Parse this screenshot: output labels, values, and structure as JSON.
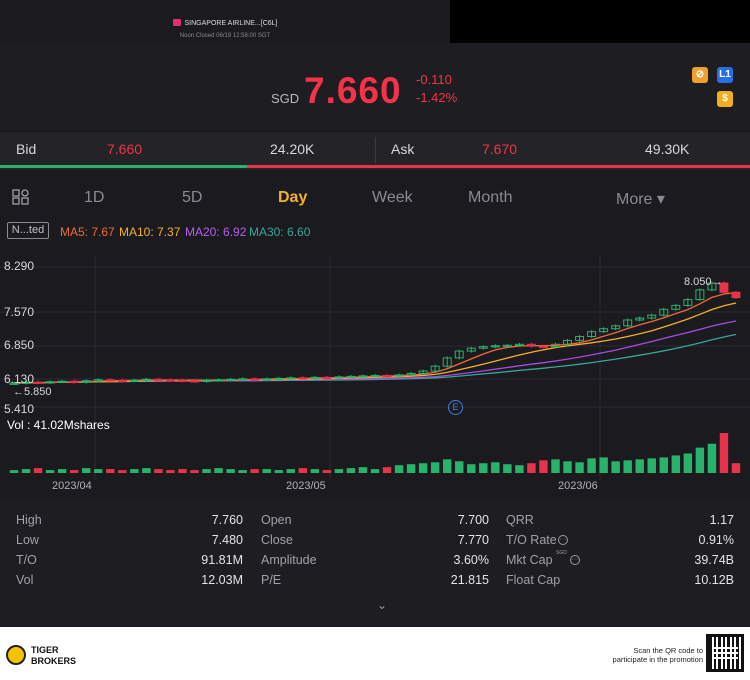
{
  "header": {
    "title": "SINGAPORE AIRLINE...[C6L]",
    "status": "Noon Closed 06/19 12:58:00 SGT"
  },
  "quote": {
    "currency": "SGD",
    "price": "7.660",
    "change": "-0.110",
    "change_pct": "-1.42%",
    "price_color": "#f2334a"
  },
  "badges": {
    "b1": "⊘",
    "b2": "L1",
    "b3": "$"
  },
  "bidask": {
    "bid_label": "Bid",
    "bid_price": "7.660",
    "bid_size": "24.20K",
    "ask_label": "Ask",
    "ask_price": "7.670",
    "ask_size": "49.30K"
  },
  "tabs": [
    "1D",
    "5D",
    "Day",
    "Week",
    "Month",
    "More ▾"
  ],
  "active_tab": "Day",
  "ma_legend": {
    "mode": "N...ted",
    "ma5": "MA5: 7.67",
    "ma10": "MA10: 7.37",
    "ma20": "MA20: 6.92",
    "ma30": "MA30: 6.60",
    "colors": {
      "ma5": "#f06a3a",
      "ma10": "#f3b12c",
      "ma20": "#a64ce0",
      "ma30": "#3aa59a"
    }
  },
  "chart_data": {
    "type": "candlestick",
    "y_ticks": [
      "8.290",
      "7.570",
      "6.850",
      "6.130",
      "5.410"
    ],
    "high_label": "8.050",
    "low_label": "5.850",
    "event_marker": "E",
    "x_ticks": [
      "2023/04",
      "2023/05",
      "2023/06"
    ],
    "volume_label": "Vol : 41.02Mshares",
    "closes": [
      5.9,
      5.92,
      5.91,
      5.93,
      5.94,
      5.92,
      5.95,
      5.97,
      5.96,
      5.95,
      5.96,
      5.98,
      5.97,
      5.96,
      5.95,
      5.94,
      5.96,
      5.97,
      5.98,
      5.99,
      5.98,
      5.99,
      6.0,
      6.01,
      6.0,
      6.02,
      6.01,
      6.03,
      6.04,
      6.05,
      6.06,
      6.05,
      6.07,
      6.1,
      6.15,
      6.25,
      6.42,
      6.56,
      6.62,
      6.65,
      6.67,
      6.68,
      6.7,
      6.66,
      6.65,
      6.7,
      6.78,
      6.86,
      6.96,
      7.02,
      7.08,
      7.2,
      7.24,
      7.3,
      7.42,
      7.5,
      7.62,
      7.82,
      7.96,
      7.77,
      7.66
    ],
    "volumes": [
      3,
      4,
      5,
      3,
      4,
      3,
      5,
      4,
      4,
      3,
      4,
      5,
      4,
      3,
      4,
      3,
      4,
      5,
      4,
      3,
      4,
      4,
      3,
      4,
      5,
      4,
      3,
      4,
      5,
      6,
      4,
      6,
      8,
      9,
      10,
      11,
      14,
      12,
      9,
      10,
      11,
      9,
      8,
      10,
      13,
      14,
      12,
      11,
      15,
      16,
      12,
      13,
      14,
      15,
      16,
      18,
      20,
      26,
      30,
      41,
      10
    ],
    "ylim": [
      5.41,
      8.29
    ]
  },
  "stats": {
    "col1": [
      {
        "label": "High",
        "value": "7.760"
      },
      {
        "label": "Low",
        "value": "7.480"
      },
      {
        "label": "T/O",
        "value": "91.81M"
      },
      {
        "label": "Vol",
        "value": "12.03M"
      }
    ],
    "col2": [
      {
        "label": "Open",
        "value": "7.700"
      },
      {
        "label": "Close",
        "value": "7.770"
      },
      {
        "label": "Amplitude",
        "value": "3.60%"
      },
      {
        "label": "P/E",
        "value": "21.815"
      }
    ],
    "col3": [
      {
        "label": "QRR",
        "value": "1.17"
      },
      {
        "label": "T/O Rate",
        "value": "0.91%"
      },
      {
        "label": "Mkt Cap",
        "value": "39.74B"
      },
      {
        "label": "Float Cap",
        "value": "10.12B"
      }
    ],
    "mktcap_sup": "SGD",
    "expand_icon": "chevron-down-icon"
  },
  "footer": {
    "brand_line1": "TIGER",
    "brand_line2": "BROKERS",
    "qr_line1": "Scan the QR code to",
    "qr_line2": "participate in the promotion"
  }
}
